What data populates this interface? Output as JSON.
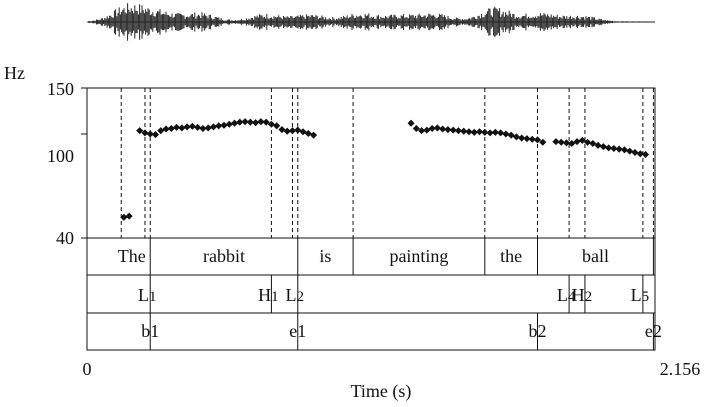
{
  "chart_data": {
    "type": "scatter",
    "ylabel": "Hz",
    "xlabel": "Time (s)",
    "xlim": [
      0,
      2.156
    ],
    "ylim": [
      40,
      150
    ],
    "y_scale": "log",
    "y_ticks": [
      40,
      100,
      150
    ],
    "x_tick_labels": [
      "0",
      "2.156"
    ],
    "y_tick_labels": [
      "40",
      "100",
      "150"
    ],
    "f0_points": [
      {
        "t": 0.14,
        "hz": 48
      },
      {
        "t": 0.16,
        "hz": 48.5
      },
      {
        "t": 0.2,
        "hz": 103
      },
      {
        "t": 0.22,
        "hz": 101
      },
      {
        "t": 0.24,
        "hz": 100
      },
      {
        "t": 0.26,
        "hz": 99.5
      },
      {
        "t": 0.28,
        "hz": 103
      },
      {
        "t": 0.3,
        "hz": 104.5
      },
      {
        "t": 0.32,
        "hz": 105
      },
      {
        "t": 0.34,
        "hz": 106
      },
      {
        "t": 0.36,
        "hz": 105.5
      },
      {
        "t": 0.38,
        "hz": 106.5
      },
      {
        "t": 0.4,
        "hz": 107
      },
      {
        "t": 0.42,
        "hz": 106
      },
      {
        "t": 0.44,
        "hz": 105
      },
      {
        "t": 0.46,
        "hz": 105.5
      },
      {
        "t": 0.48,
        "hz": 106.5
      },
      {
        "t": 0.5,
        "hz": 107.5
      },
      {
        "t": 0.52,
        "hz": 108
      },
      {
        "t": 0.54,
        "hz": 109
      },
      {
        "t": 0.56,
        "hz": 110
      },
      {
        "t": 0.58,
        "hz": 111
      },
      {
        "t": 0.6,
        "hz": 111.5
      },
      {
        "t": 0.62,
        "hz": 111
      },
      {
        "t": 0.64,
        "hz": 110.5
      },
      {
        "t": 0.66,
        "hz": 111.5
      },
      {
        "t": 0.68,
        "hz": 111
      },
      {
        "t": 0.7,
        "hz": 109
      },
      {
        "t": 0.72,
        "hz": 107.5
      },
      {
        "t": 0.74,
        "hz": 104
      },
      {
        "t": 0.76,
        "hz": 102.5
      },
      {
        "t": 0.78,
        "hz": 103
      },
      {
        "t": 0.8,
        "hz": 103.5
      },
      {
        "t": 0.82,
        "hz": 102
      },
      {
        "t": 0.84,
        "hz": 100.5
      },
      {
        "t": 0.86,
        "hz": 99
      },
      {
        "t": 1.23,
        "hz": 110
      },
      {
        "t": 1.25,
        "hz": 105
      },
      {
        "t": 1.27,
        "hz": 103
      },
      {
        "t": 1.29,
        "hz": 103.5
      },
      {
        "t": 1.31,
        "hz": 105
      },
      {
        "t": 1.33,
        "hz": 105.5
      },
      {
        "t": 1.35,
        "hz": 104.5
      },
      {
        "t": 1.37,
        "hz": 104
      },
      {
        "t": 1.39,
        "hz": 103.5
      },
      {
        "t": 1.41,
        "hz": 103
      },
      {
        "t": 1.43,
        "hz": 102.5
      },
      {
        "t": 1.45,
        "hz": 102
      },
      {
        "t": 1.47,
        "hz": 101.5
      },
      {
        "t": 1.49,
        "hz": 102
      },
      {
        "t": 1.51,
        "hz": 101.5
      },
      {
        "t": 1.53,
        "hz": 101
      },
      {
        "t": 1.55,
        "hz": 101.5
      },
      {
        "t": 1.57,
        "hz": 101
      },
      {
        "t": 1.59,
        "hz": 100
      },
      {
        "t": 1.61,
        "hz": 99
      },
      {
        "t": 1.63,
        "hz": 97.5
      },
      {
        "t": 1.65,
        "hz": 96.5
      },
      {
        "t": 1.67,
        "hz": 96
      },
      {
        "t": 1.69,
        "hz": 95.5
      },
      {
        "t": 1.71,
        "hz": 95
      },
      {
        "t": 1.73,
        "hz": 93
      },
      {
        "t": 1.78,
        "hz": 93.5
      },
      {
        "t": 1.8,
        "hz": 93
      },
      {
        "t": 1.82,
        "hz": 92.5
      },
      {
        "t": 1.84,
        "hz": 92
      },
      {
        "t": 1.86,
        "hz": 93.5
      },
      {
        "t": 1.88,
        "hz": 94.5
      },
      {
        "t": 1.9,
        "hz": 93
      },
      {
        "t": 1.92,
        "hz": 92
      },
      {
        "t": 1.94,
        "hz": 90.5
      },
      {
        "t": 1.96,
        "hz": 89.5
      },
      {
        "t": 1.98,
        "hz": 88.5
      },
      {
        "t": 2.0,
        "hz": 88
      },
      {
        "t": 2.02,
        "hz": 87.5
      },
      {
        "t": 2.04,
        "hz": 87
      },
      {
        "t": 2.06,
        "hz": 86
      },
      {
        "t": 2.08,
        "hz": 85
      },
      {
        "t": 2.1,
        "hz": 84
      },
      {
        "t": 2.12,
        "hz": 83.5
      }
    ],
    "boundaries_s": [
      0.13,
      0.22,
      0.24,
      0.7,
      0.78,
      0.8,
      1.01,
      1.51,
      1.71,
      1.83,
      1.89,
      2.11,
      2.15
    ],
    "words": [
      {
        "label": "The",
        "start": 0.13,
        "end": 0.24
      },
      {
        "label": "rabbit",
        "start": 0.24,
        "end": 0.8
      },
      {
        "label": "is",
        "start": 0.8,
        "end": 1.01
      },
      {
        "label": "painting",
        "start": 1.01,
        "end": 1.51
      },
      {
        "label": "the",
        "start": 1.51,
        "end": 1.71
      },
      {
        "label": "ball",
        "start": 1.71,
        "end": 2.15
      }
    ],
    "tones": [
      {
        "main": "L",
        "sub": "1",
        "t": 0.24
      },
      {
        "main": "H",
        "sub": "1",
        "t": 0.7
      },
      {
        "main": "L",
        "sub": "2",
        "t": 0.8
      },
      {
        "main": "L",
        "sub": "4",
        "t": 1.83
      },
      {
        "main": "H",
        "sub": "2",
        "t": 1.89
      },
      {
        "main": "L",
        "sub": "5",
        "t": 2.11
      }
    ],
    "breaks": [
      {
        "label": "b1",
        "t": 0.24
      },
      {
        "label": "e1",
        "t": 0.8
      },
      {
        "label": "b2",
        "t": 1.71
      },
      {
        "label": "e2",
        "t": 2.15
      }
    ]
  }
}
